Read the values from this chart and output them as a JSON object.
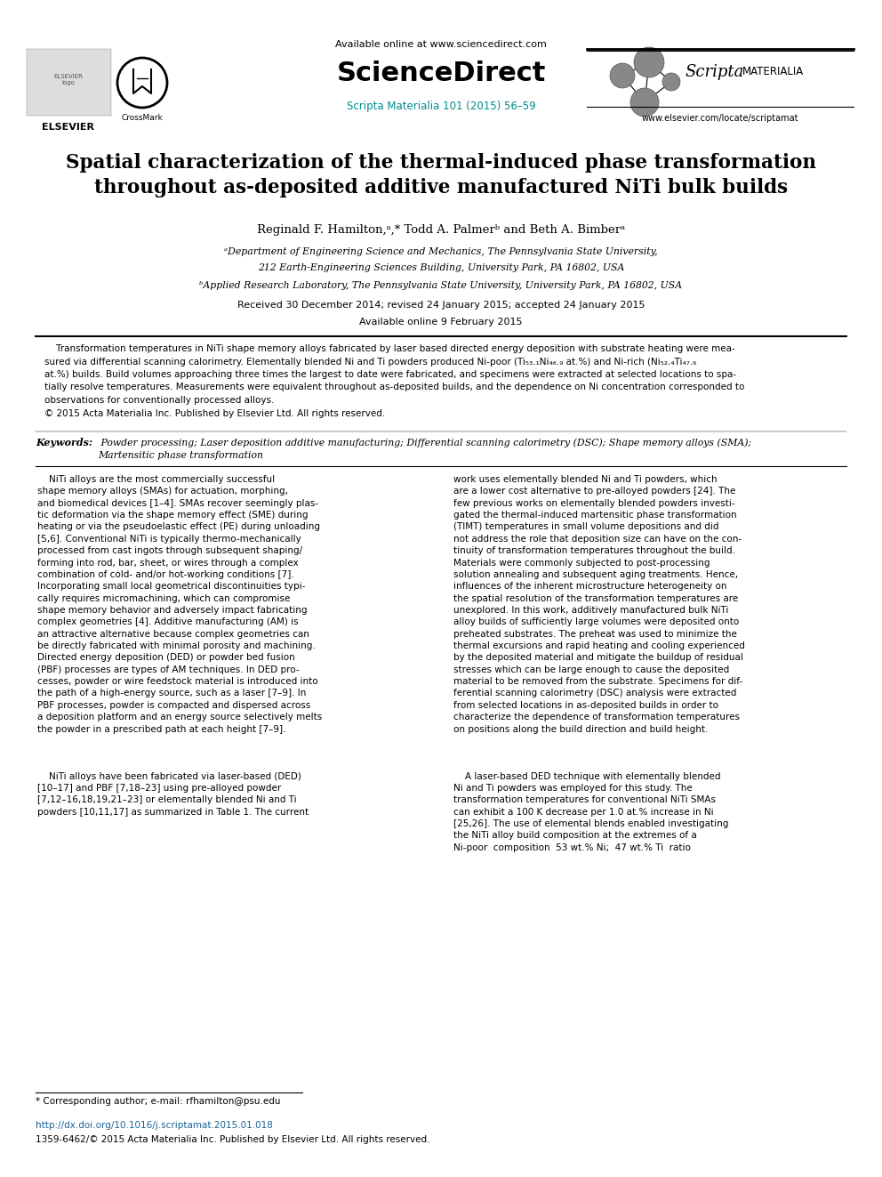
{
  "bg_color": "#ffffff",
  "available_online": "Available online at www.sciencedirect.com",
  "sciencedirect": "ScienceDirect",
  "journal_ref": "Scripta Materialia 101 (2015) 56–59",
  "website": "www.elsevier.com/locate/scriptamat",
  "title_line1": "Spatial characterization of the thermal-induced phase transformation",
  "title_line2": "throughout as-deposited additive manufactured NiTi bulk builds",
  "authors_line": "Reginald F. Hamilton,ᵃ,* Todd A. Palmerᵇ and Beth A. Bimberᵃ",
  "affil_a1": "ᵃDepartment of Engineering Science and Mechanics, The Pennsylvania State University,",
  "affil_a2": "212 Earth-Engineering Sciences Building, University Park, PA 16802, USA",
  "affil_b": "ᵇApplied Research Laboratory, The Pennsylvania State University, University Park, PA 16802, USA",
  "received": "Received 30 December 2014; revised 24 January 2015; accepted 24 January 2015",
  "available": "Available online 9 February 2015",
  "abstract_line1": "    Transformation temperatures in NiTi shape memory alloys fabricated by laser based directed energy deposition with substrate heating were mea-",
  "abstract_line2": "sured via differential scanning calorimetry. Elementally blended Ni and Ti powders produced Ni-poor (Ti₅₃.₁Ni₄₆.₉ at.%) and Ni-rich (Ni₅₂.₄Ti₄₇.₆",
  "abstract_line3": "at.%) builds. Build volumes approaching three times the largest to date were fabricated, and specimens were extracted at selected locations to spa-",
  "abstract_line4": "tially resolve temperatures. Measurements were equivalent throughout as-deposited builds, and the dependence on Ni concentration corresponded to",
  "abstract_line5": "observations for conventionally processed alloys.",
  "abstract_copyright": "© 2015 Acta Materialia Inc. Published by Elsevier Ltd. All rights reserved.",
  "keywords_label": "Keywords:",
  "keywords_text": " Powder processing; Laser deposition additive manufacturing; Differential scanning calorimetry (DSC); Shape memory alloys (SMA);",
  "keywords_text2": "Martensitic phase transformation",
  "col1_text": "    NiTi alloys are the most commercially successful\nshape memory alloys (SMAs) for actuation, morphing,\nand biomedical devices [1–4]. SMAs recover seemingly plas-\ntic deformation via the shape memory effect (SME) during\nheating or via the pseudoelastic effect (PE) during unloading\n[5,6]. Conventional NiTi is typically thermo-mechanically\nprocessed from cast ingots through subsequent shaping/\nforming into rod, bar, sheet, or wires through a complex\ncombination of cold- and/or hot-working conditions [7].\nIncorporating small local geometrical discontinuities typi-\ncally requires micromachining, which can compromise\nshape memory behavior and adversely impact fabricating\ncomplex geometries [4]. Additive manufacturing (AM) is\nan attractive alternative because complex geometries can\nbe directly fabricated with minimal porosity and machining.\nDirected energy deposition (DED) or powder bed fusion\n(PBF) processes are types of AM techniques. In DED pro-\ncesses, powder or wire feedstock material is introduced into\nthe path of a high-energy source, such as a laser [7–9]. In\nPBF processes, powder is compacted and dispersed across\na deposition platform and an energy source selectively melts\nthe powder in a prescribed path at each height [7–9].",
  "col1_text2": "    NiTi alloys have been fabricated via laser-based (DED)\n[10–17] and PBF [7,18–23] using pre-alloyed powder\n[7,12–16,18,19,21–23] or elementally blended Ni and Ti\npowders [10,11,17] as summarized in Table 1. The current",
  "col2_text": "work uses elementally blended Ni and Ti powders, which\nare a lower cost alternative to pre-alloyed powders [24]. The\nfew previous works on elementally blended powders investi-\ngated the thermal-induced martensitic phase transformation\n(TIMT) temperatures in small volume depositions and did\nnot address the role that deposition size can have on the con-\ntinuity of transformation temperatures throughout the build.\nMaterials were commonly subjected to post-processing\nsolution annealing and subsequent aging treatments. Hence,\ninfluences of the inherent microstructure heterogeneity on\nthe spatial resolution of the transformation temperatures are\nunexplored. In this work, additively manufactured bulk NiTi\nalloy builds of sufficiently large volumes were deposited onto\npreheated substrates. The preheat was used to minimize the\nthermal excursions and rapid heating and cooling experienced\nby the deposited material and mitigate the buildup of residual\nstresses which can be large enough to cause the deposited\nmaterial to be removed from the substrate. Specimens for dif-\nferential scanning calorimetry (DSC) analysis were extracted\nfrom selected locations in as-deposited builds in order to\ncharacterize the dependence of transformation temperatures\non positions along the build direction and build height.",
  "col2_text2": "    A laser-based DED technique with elementally blended\nNi and Ti powders was employed for this study. The\ntransformation temperatures for conventional NiTi SMAs\ncan exhibit a 100 K decrease per 1.0 at.% increase in Ni\n[25,26]. The use of elemental blends enabled investigating\nthe NiTi alloy build composition at the extremes of a\nNi-poor  composition  53 wt.% Ni;  47 wt.% Ti  ratio",
  "footnote": "* Corresponding author; e-mail: rfhamilton@psu.edu",
  "doi_line": "http://dx.doi.org/10.1016/j.scriptamat.2015.01.018",
  "copyright_line": "1359-6462/© 2015 Acta Materialia Inc. Published by Elsevier Ltd. All rights reserved.",
  "teal": "#008B8B",
  "link_blue": "#1a6496",
  "dark_blue": "#2060a0"
}
